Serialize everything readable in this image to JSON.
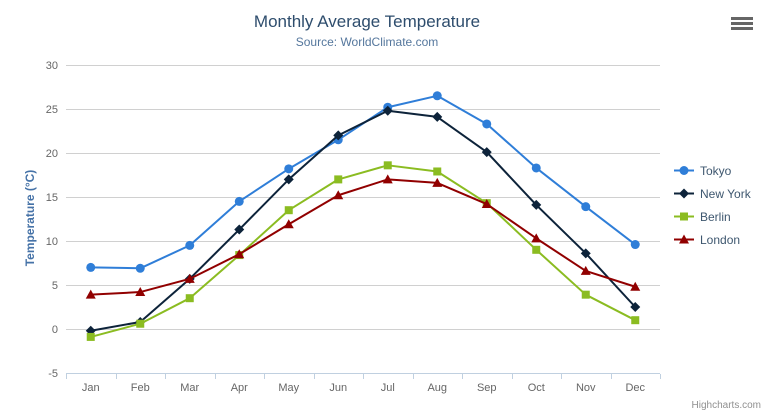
{
  "title": "Monthly Average Temperature",
  "subtitle": "Source: WorldClimate.com",
  "credits": "Highcharts.com",
  "icons": {
    "context_menu": "hamburger-icon"
  },
  "palette": {
    "grid_line": "#d0d0d0",
    "axis_line": "#c0d0e0",
    "tick_label": "#666666",
    "title_text": "#2e4d6d",
    "subtitle_text": "#55779d",
    "legend_text": "#3E576F",
    "axis_title_text": "#4572A7",
    "credit_text": "#909090",
    "burger_icon": "#666666"
  },
  "chart_data": {
    "type": "line",
    "title": "Monthly Average Temperature",
    "subtitle": "Source: WorldClimate.com",
    "xlabel": "",
    "ylabel": "Temperature (°C)",
    "ylim": [
      -5,
      30
    ],
    "yticks": [
      -5,
      0,
      5,
      10,
      15,
      20,
      25,
      30
    ],
    "grid": true,
    "legend_position": "right",
    "categories": [
      "Jan",
      "Feb",
      "Mar",
      "Apr",
      "May",
      "Jun",
      "Jul",
      "Aug",
      "Sep",
      "Oct",
      "Nov",
      "Dec"
    ],
    "series": [
      {
        "name": "Tokyo",
        "color": "#2f7ed8",
        "marker": "circle",
        "values": [
          7.0,
          6.9,
          9.5,
          14.5,
          18.2,
          21.5,
          25.2,
          26.5,
          23.3,
          18.3,
          13.9,
          9.6
        ]
      },
      {
        "name": "New York",
        "color": "#0d233a",
        "marker": "diamond",
        "values": [
          -0.2,
          0.8,
          5.7,
          11.3,
          17.0,
          22.0,
          24.8,
          24.1,
          20.1,
          14.1,
          8.6,
          2.5
        ]
      },
      {
        "name": "Berlin",
        "color": "#8bbc21",
        "marker": "square",
        "values": [
          -0.9,
          0.6,
          3.5,
          8.4,
          13.5,
          17.0,
          18.6,
          17.9,
          14.3,
          9.0,
          3.9,
          1.0
        ]
      },
      {
        "name": "London",
        "color": "#910000",
        "marker": "triangle",
        "values": [
          3.9,
          4.2,
          5.7,
          8.5,
          11.9,
          15.2,
          17.0,
          16.6,
          14.2,
          10.3,
          6.6,
          4.8
        ]
      }
    ]
  }
}
